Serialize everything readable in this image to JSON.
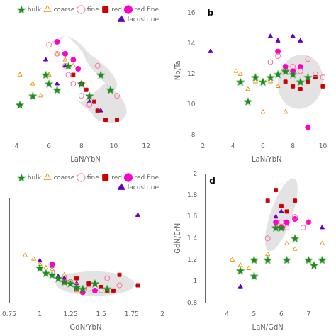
{
  "chart_data": [
    {
      "type": "scatter",
      "xlabel": "LaN/YbN",
      "xlim": [
        3.5,
        13.0
      ],
      "xticks": [
        4,
        6,
        8,
        10,
        12
      ],
      "ylim": [
        1.5,
        5.0
      ],
      "tick_labels": "x",
      "grid": false,
      "legend": "upper right",
      "regions": [
        {
          "shape": "blob",
          "color": "#cccccc",
          "x": [
            6.5,
            7.0,
            7.5,
            8.0,
            8.5,
            9.0,
            9.5,
            10.0,
            10.2,
            9.8,
            9.0,
            8.5,
            8.0,
            7.5,
            7.0,
            6.5,
            6.2
          ],
          "y": [
            4.5,
            4.8,
            4.6,
            4.3,
            3.8,
            3.5,
            3.2,
            3.0,
            3.2,
            3.6,
            4.0,
            4.2,
            4.5,
            4.7,
            4.8,
            4.7,
            4.6
          ]
        },
        {
          "shape": "blob",
          "color": "#cccccc",
          "x": [
            7.0,
            7.5,
            8.0,
            8.5,
            9.0,
            9.8,
            10.5,
            10.8,
            10.5,
            10.0,
            9.5,
            9.0,
            8.5,
            8.0,
            7.5,
            7.0
          ],
          "y": [
            3.0,
            2.8,
            2.5,
            2.3,
            2.0,
            1.9,
            2.0,
            2.3,
            2.7,
            3.0,
            3.2,
            3.0,
            2.8,
            2.6,
            2.8,
            3.0
          ]
        }
      ],
      "series": [
        {
          "name": "bulk",
          "color": "#1a8c1a",
          "marker": "star",
          "x": [
            4.2,
            5.0,
            5.8,
            6.0,
            6.5,
            7.2,
            8.0,
            8.5,
            9.2,
            9.8
          ],
          "values": [
            2.5,
            2.8,
            3.5,
            3.2,
            3.0,
            3.8,
            3.2,
            2.8,
            3.5,
            3.0
          ]
        },
        {
          "name": "coarse",
          "color": "#e8930a",
          "marker": "triangle-open",
          "x": [
            4.2,
            5.0,
            5.5,
            6.0,
            6.5,
            7.0,
            7.5
          ],
          "values": [
            3.5,
            3.2,
            2.8,
            3.5,
            4.2,
            4.0,
            3.8
          ]
        },
        {
          "name": "fine",
          "color": "#ff6699",
          "marker": "circle-open",
          "x": [
            6.0,
            6.5,
            7.0,
            7.2,
            7.5,
            8.0,
            8.5,
            9.0,
            10.2
          ],
          "values": [
            4.5,
            4.2,
            3.8,
            3.5,
            3.2,
            2.8,
            2.5,
            3.8,
            2.8
          ]
        },
        {
          "name": "red",
          "color": "#cc0000",
          "marker": "square",
          "x": [
            7.5,
            8.0,
            8.3,
            8.8,
            9.0,
            9.5,
            10.2
          ],
          "values": [
            3.5,
            3.2,
            3.0,
            2.6,
            2.3,
            2.0,
            2.0
          ]
        },
        {
          "name": "red fine",
          "color": "#ff00cc",
          "marker": "circle",
          "x": [
            6.5,
            7.0,
            7.5,
            7.8,
            8.0
          ],
          "values": [
            4.6,
            4.2,
            4.0,
            3.7,
            3.2
          ]
        },
        {
          "name": "lacustrine",
          "color": "#6600bb",
          "marker": "triangle",
          "x": [
            5.8,
            6.5,
            7.0,
            8.5,
            9.2
          ],
          "values": [
            4.0,
            3.2,
            3.8,
            2.6,
            2.3
          ]
        }
      ]
    },
    {
      "type": "scatter",
      "xlabel": "LaN/YbN",
      "ylabel": "Nb/Ta",
      "xlim": [
        2.0,
        10.5
      ],
      "xticks": [
        2,
        4,
        6,
        8,
        10
      ],
      "ylim": [
        8.0,
        16.5
      ],
      "yticks": [
        8,
        10,
        12,
        14,
        16
      ],
      "grid": false,
      "annotations": [
        {
          "text": "b"
        }
      ],
      "regions": [
        {
          "shape": "ellipse",
          "color": "#cccccc",
          "center": [
            8.5,
            11.5
          ],
          "radii": [
            1.5,
            1.8
          ],
          "angle": -10
        }
      ],
      "series": [
        {
          "color": "#1a8c1a",
          "marker": "star",
          "x": [
            4.5,
            5.0,
            5.5,
            6.0,
            6.5,
            7.0,
            7.5,
            8.0,
            8.5,
            9.0
          ],
          "values": [
            11.5,
            10.2,
            11.8,
            11.5,
            11.8,
            12.0,
            12.2,
            12.0,
            11.5,
            11.8
          ]
        },
        {
          "color": "#e8930a",
          "marker": "triangle-open",
          "x": [
            4.2,
            4.5,
            5.0,
            5.5,
            6.0,
            6.5,
            7.0,
            7.5
          ],
          "values": [
            12.2,
            12.0,
            11.0,
            11.5,
            9.5,
            11.5,
            11.2,
            9.5
          ]
        },
        {
          "color": "#ff6699",
          "marker": "circle-open",
          "x": [
            6.5,
            7.0,
            7.5,
            8.0,
            8.5,
            9.0,
            9.5,
            10.0
          ],
          "values": [
            12.8,
            13.2,
            12.2,
            12.5,
            12.2,
            13.0,
            12.0,
            11.8
          ]
        },
        {
          "color": "#cc0000",
          "marker": "square",
          "x": [
            7.5,
            8.0,
            8.5,
            9.0,
            9.5,
            10.0
          ],
          "values": [
            11.5,
            11.2,
            11.0,
            11.5,
            11.8,
            11.2
          ]
        },
        {
          "color": "#ff00cc",
          "marker": "circle",
          "x": [
            7.0,
            7.5,
            8.0,
            8.5,
            9.0
          ],
          "values": [
            13.5,
            12.5,
            12.2,
            12.5,
            8.5
          ]
        },
        {
          "color": "#6600bb",
          "marker": "triangle",
          "x": [
            2.5,
            6.5,
            7.0,
            8.0,
            8.5
          ],
          "values": [
            13.5,
            14.5,
            14.2,
            14.5,
            14.2
          ]
        }
      ]
    },
    {
      "type": "scatter",
      "xlabel": "GdN/YbN",
      "xlim": [
        0.75,
        2.0
      ],
      "xticks": [
        0.75,
        1,
        1.25,
        1.5,
        1.75,
        2
      ],
      "ylim": [
        0.5,
        3.5
      ],
      "tick_labels": "x",
      "grid": false,
      "legend": "upper right",
      "regions": [
        {
          "shape": "ellipse",
          "color": "#cccccc",
          "center": [
            1.45,
            1.05
          ],
          "radii": [
            0.32,
            0.35
          ],
          "angle": 15
        }
      ],
      "series": [
        {
          "name": "bulk",
          "color": "#1a8c1a",
          "marker": "star",
          "x": [
            1.0,
            1.05,
            1.1,
            1.15,
            1.2,
            1.25,
            1.3,
            1.35,
            1.45,
            1.55
          ],
          "values": [
            1.5,
            1.35,
            1.3,
            1.2,
            1.1,
            1.05,
            0.95,
            0.9,
            1.05,
            0.9
          ]
        },
        {
          "name": "coarse",
          "color": "#e8930a",
          "marker": "triangle-open",
          "x": [
            0.88,
            0.95,
            1.0,
            1.05,
            1.1,
            1.2,
            1.3
          ],
          "values": [
            1.85,
            1.75,
            1.6,
            1.5,
            1.45,
            1.3,
            0.85
          ]
        },
        {
          "name": "fine",
          "color": "#ff6699",
          "marker": "circle-open",
          "x": [
            1.1,
            1.2,
            1.25,
            1.3,
            1.4,
            1.5,
            1.55,
            1.65
          ],
          "values": [
            1.35,
            1.2,
            1.1,
            1.0,
            0.9,
            0.85,
            1.2,
            1.0
          ]
        },
        {
          "name": "red",
          "color": "#cc0000",
          "marker": "square",
          "x": [
            1.3,
            1.4,
            1.5,
            1.55,
            1.6,
            1.65,
            1.8
          ],
          "values": [
            1.2,
            1.05,
            0.95,
            0.85,
            0.85,
            1.3,
            1.0
          ]
        },
        {
          "name": "red fine",
          "color": "#ff00cc",
          "marker": "circle",
          "x": [
            1.1,
            1.2,
            1.3,
            1.35,
            1.45
          ],
          "values": [
            1.6,
            1.1,
            0.9,
            0.8,
            0.85
          ]
        },
        {
          "name": "lacustrine",
          "color": "#6600bb",
          "marker": "triangle",
          "x": [
            1.0,
            1.1,
            1.15,
            1.2,
            1.3,
            1.8
          ],
          "values": [
            1.7,
            1.55,
            1.25,
            1.2,
            1.05,
            3.0
          ]
        }
      ]
    },
    {
      "type": "scatter",
      "xlabel": "LaN/GdN",
      "ylabel": "GdN/ErN",
      "xlim": [
        3.2,
        7.8
      ],
      "xticks": [
        4,
        5,
        6,
        7
      ],
      "ylim": [
        0.8,
        2.0
      ],
      "yticks": [
        0.8,
        1,
        1.2,
        1.4,
        1.6,
        1.8,
        2
      ],
      "grid": false,
      "annotations": [
        {
          "text": "d"
        }
      ],
      "regions": [
        {
          "shape": "ellipse",
          "color": "#cccccc",
          "center": [
            6.0,
            1.62
          ],
          "radii": [
            0.65,
            0.22
          ],
          "angle": 25
        }
      ],
      "series": [
        {
          "color": "#1a8c1a",
          "marker": "star",
          "x": [
            4.5,
            5.0,
            5.0,
            5.5,
            5.8,
            6.0,
            6.2,
            6.5,
            7.0,
            7.2,
            7.5
          ],
          "values": [
            1.1,
            1.05,
            1.2,
            1.2,
            1.5,
            1.5,
            1.2,
            1.4,
            1.2,
            1.15,
            1.2
          ]
        },
        {
          "color": "#e8930a",
          "marker": "triangle-open",
          "x": [
            4.2,
            4.5,
            4.8,
            5.0,
            5.5,
            6.0,
            6.2,
            6.5,
            7.0,
            7.5
          ],
          "values": [
            1.2,
            1.15,
            1.12,
            1.2,
            1.25,
            1.5,
            1.35,
            1.3,
            1.2,
            1.35
          ]
        },
        {
          "color": "#ff6699",
          "marker": "circle-open",
          "x": [
            5.5,
            5.8,
            6.0,
            6.2,
            6.5,
            6.8,
            7.0
          ],
          "values": [
            1.4,
            1.5,
            1.55,
            1.5,
            1.6,
            1.5,
            1.55
          ]
        },
        {
          "color": "#cc0000",
          "marker": "square",
          "x": [
            5.5,
            5.8,
            6.0,
            6.2,
            6.5
          ],
          "values": [
            1.75,
            1.85,
            1.7,
            1.65,
            1.75
          ]
        },
        {
          "color": "#ff00cc",
          "marker": "circle",
          "x": [
            5.8,
            6.0,
            6.2,
            6.5,
            7.0
          ],
          "values": [
            1.55,
            1.5,
            1.55,
            1.58,
            1.55
          ]
        },
        {
          "color": "#6600bb",
          "marker": "triangle",
          "x": [
            4.5,
            5.8,
            6.0,
            7.5
          ],
          "values": [
            0.95,
            1.6,
            1.65,
            1.5
          ]
        }
      ]
    }
  ]
}
